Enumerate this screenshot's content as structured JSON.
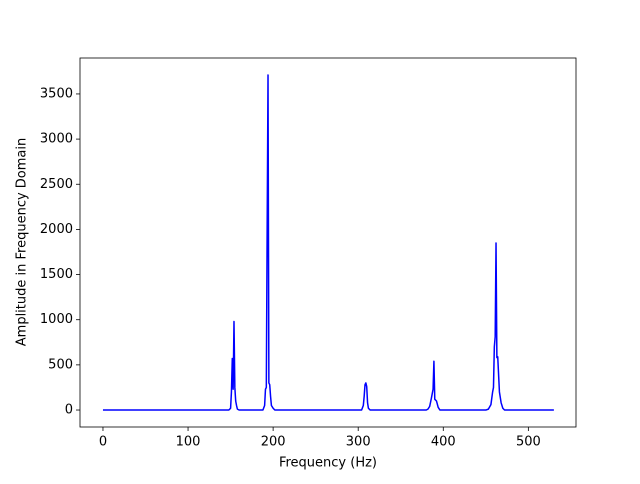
{
  "chart_data": {
    "type": "line",
    "xlabel": "Frequency (Hz)",
    "ylabel": "Amplitude in Frequency Domain",
    "x": [
      0,
      50,
      100,
      148,
      150,
      151,
      152,
      153,
      154,
      155,
      156,
      157,
      158,
      160,
      188,
      190,
      191,
      192,
      193,
      194,
      195,
      196,
      197,
      198,
      200,
      202,
      250,
      300,
      304,
      306,
      307,
      308,
      309,
      310,
      311,
      312,
      314,
      350,
      380,
      382,
      384,
      386,
      388,
      389,
      390,
      392,
      394,
      396,
      420,
      450,
      453,
      456,
      458,
      459,
      460,
      461,
      462,
      463,
      464,
      466,
      468,
      470,
      472,
      500,
      530
    ],
    "values": [
      0,
      0,
      0,
      0,
      20,
      200,
      570,
      230,
      980,
      250,
      100,
      50,
      10,
      0,
      0,
      50,
      230,
      250,
      2030,
      3710,
      300,
      280,
      150,
      50,
      20,
      0,
      0,
      0,
      0,
      50,
      150,
      280,
      300,
      260,
      80,
      20,
      0,
      0,
      0,
      10,
      40,
      130,
      230,
      540,
      120,
      100,
      30,
      0,
      0,
      0,
      10,
      60,
      200,
      250,
      700,
      810,
      1850,
      580,
      590,
      200,
      80,
      20,
      0,
      0,
      0
    ],
    "color": "#0000ff",
    "xlim": [
      -27,
      556
    ],
    "ylim": [
      -188,
      3898
    ],
    "xticks": [
      0,
      100,
      200,
      300,
      400,
      500
    ],
    "yticks": [
      0,
      500,
      1000,
      1500,
      2000,
      2500,
      3000,
      3500
    ]
  }
}
